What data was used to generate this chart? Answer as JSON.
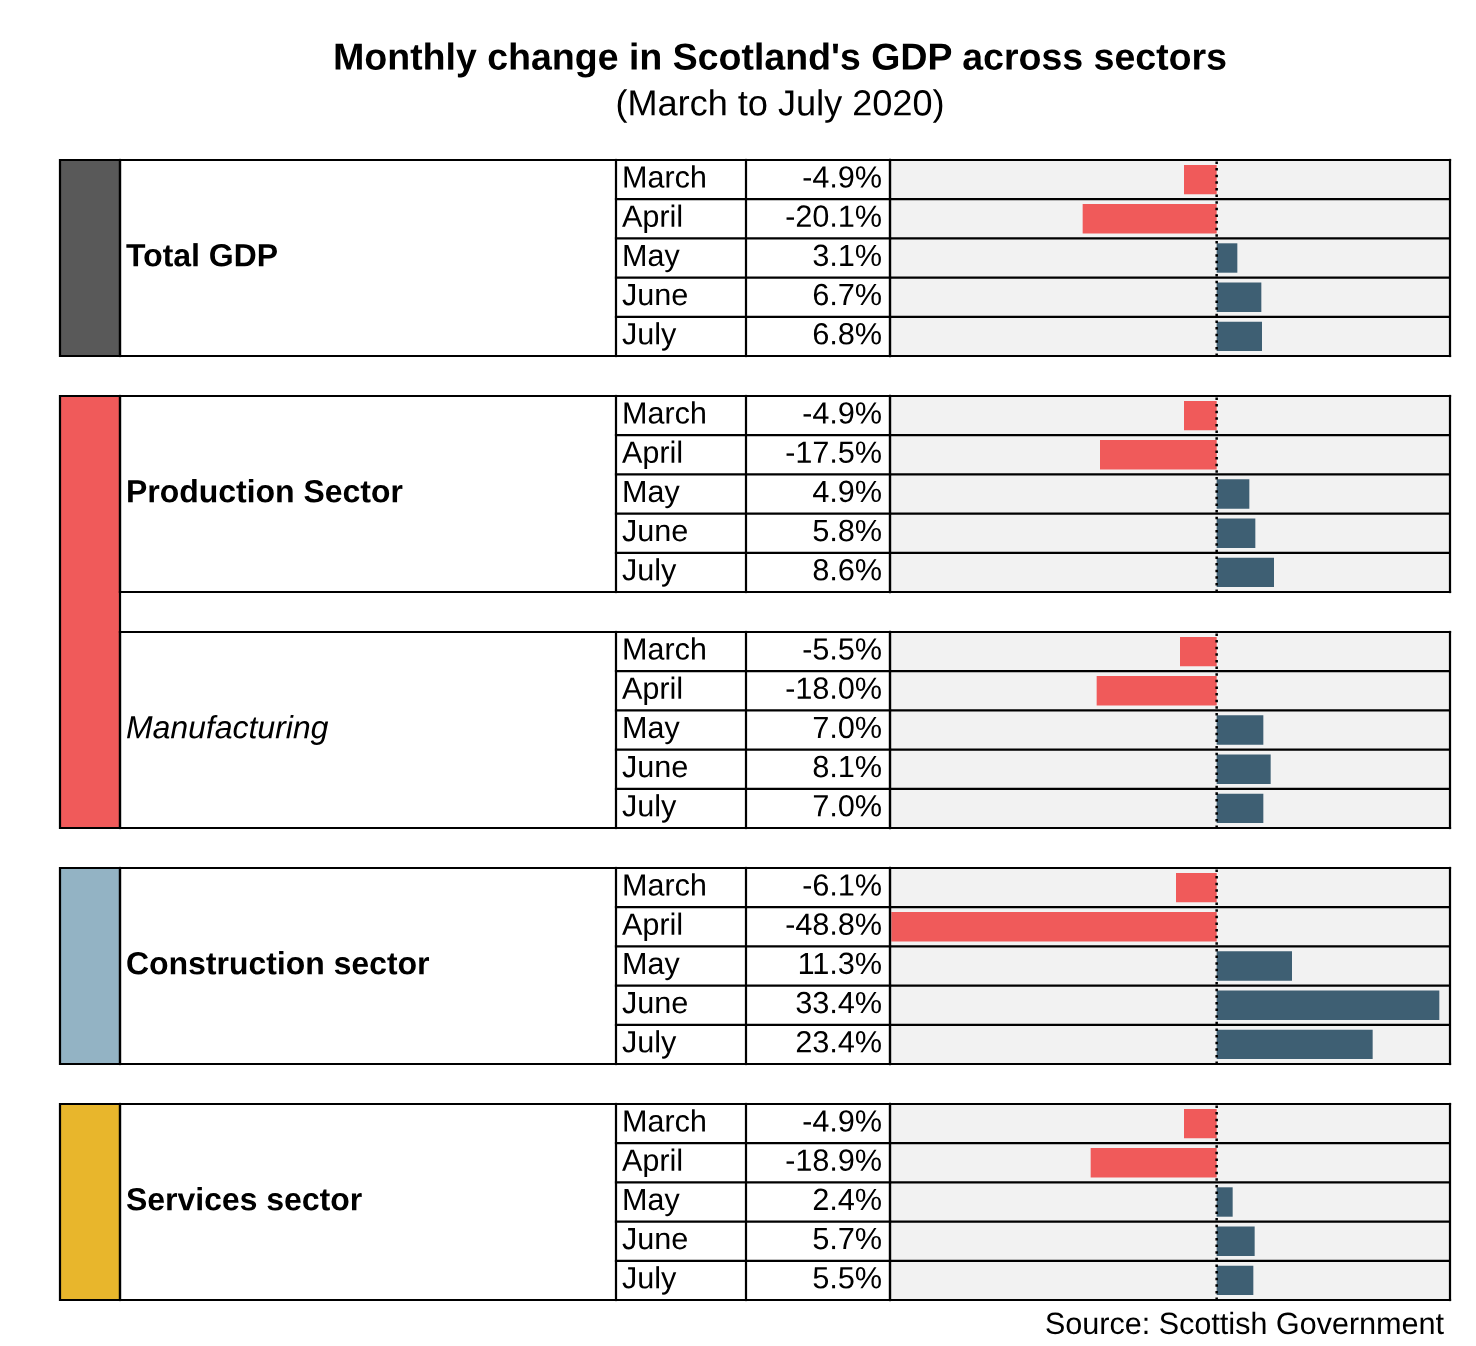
{
  "chart_data": [
    {
      "type": "bar",
      "orientation": "horizontal",
      "title": "Monthly change in Scotland's GDP across sectors",
      "subtitle": "(March to July 2020)",
      "ylabel": "Total GDP",
      "categories": [
        "March",
        "April",
        "May",
        "June",
        "July"
      ],
      "values": [
        -4.9,
        -20.1,
        3.1,
        6.7,
        6.8
      ],
      "value_labels": [
        "-4.9%",
        "-20.1%",
        "3.1%",
        "6.7%",
        "6.8%"
      ],
      "colors": [
        "#f05a5a",
        "#f05a5a",
        "#3e5f73",
        "#3e5f73",
        "#3e5f73"
      ],
      "xlim": [
        -49,
        35
      ],
      "tick_labels": false,
      "ref_lines": [
        {
          "axis": "x",
          "value": 0,
          "line_style": "dotted",
          "color": "#000000"
        }
      ]
    },
    {
      "type": "bar",
      "orientation": "horizontal",
      "ylabel": "Production Sector",
      "categories": [
        "March",
        "April",
        "May",
        "June",
        "July"
      ],
      "values": [
        -4.9,
        -17.5,
        4.9,
        5.8,
        8.6
      ],
      "value_labels": [
        "-4.9%",
        "-17.5%",
        "4.9%",
        "5.8%",
        "8.6%"
      ],
      "colors": [
        "#f05a5a",
        "#f05a5a",
        "#3e5f73",
        "#3e5f73",
        "#3e5f73"
      ],
      "xlim": [
        -49,
        35
      ],
      "tick_labels": false,
      "ref_lines": [
        {
          "axis": "x",
          "value": 0,
          "line_style": "dotted",
          "color": "#000000"
        }
      ]
    },
    {
      "type": "bar",
      "orientation": "horizontal",
      "ylabel": "Manufacturing",
      "categories": [
        "March",
        "April",
        "May",
        "June",
        "July"
      ],
      "values": [
        -5.5,
        -18.0,
        7.0,
        8.1,
        7.0
      ],
      "value_labels": [
        "-5.5%",
        "-18.0%",
        "7.0%",
        "8.1%",
        "7.0%"
      ],
      "colors": [
        "#f05a5a",
        "#f05a5a",
        "#3e5f73",
        "#3e5f73",
        "#3e5f73"
      ],
      "xlim": [
        -49,
        35
      ],
      "tick_labels": false,
      "ref_lines": [
        {
          "axis": "x",
          "value": 0,
          "line_style": "dotted",
          "color": "#000000"
        }
      ]
    },
    {
      "type": "bar",
      "orientation": "horizontal",
      "ylabel": "Construction sector",
      "categories": [
        "March",
        "April",
        "May",
        "June",
        "July"
      ],
      "values": [
        -6.1,
        -48.8,
        11.3,
        33.4,
        23.4
      ],
      "value_labels": [
        "-6.1%",
        "-48.8%",
        "11.3%",
        "33.4%",
        "23.4%"
      ],
      "colors": [
        "#f05a5a",
        "#f05a5a",
        "#3e5f73",
        "#3e5f73",
        "#3e5f73"
      ],
      "xlim": [
        -49,
        35
      ],
      "tick_labels": false,
      "ref_lines": [
        {
          "axis": "x",
          "value": 0,
          "line_style": "dotted",
          "color": "#000000"
        }
      ]
    },
    {
      "type": "bar",
      "orientation": "horizontal",
      "ylabel": "Services sector",
      "categories": [
        "March",
        "April",
        "May",
        "June",
        "July"
      ],
      "values": [
        -4.9,
        -18.9,
        2.4,
        5.7,
        5.5
      ],
      "value_labels": [
        "-4.9%",
        "-18.9%",
        "2.4%",
        "5.7%",
        "5.5%"
      ],
      "colors": [
        "#f05a5a",
        "#f05a5a",
        "#3e5f73",
        "#3e5f73",
        "#3e5f73"
      ],
      "xlim": [
        -49,
        35
      ],
      "tick_labels": false,
      "ref_lines": [
        {
          "axis": "x",
          "value": 0,
          "line_style": "dotted",
          "color": "#000000"
        }
      ],
      "annotations": [
        "Source: Scottish Government"
      ]
    }
  ]
}
